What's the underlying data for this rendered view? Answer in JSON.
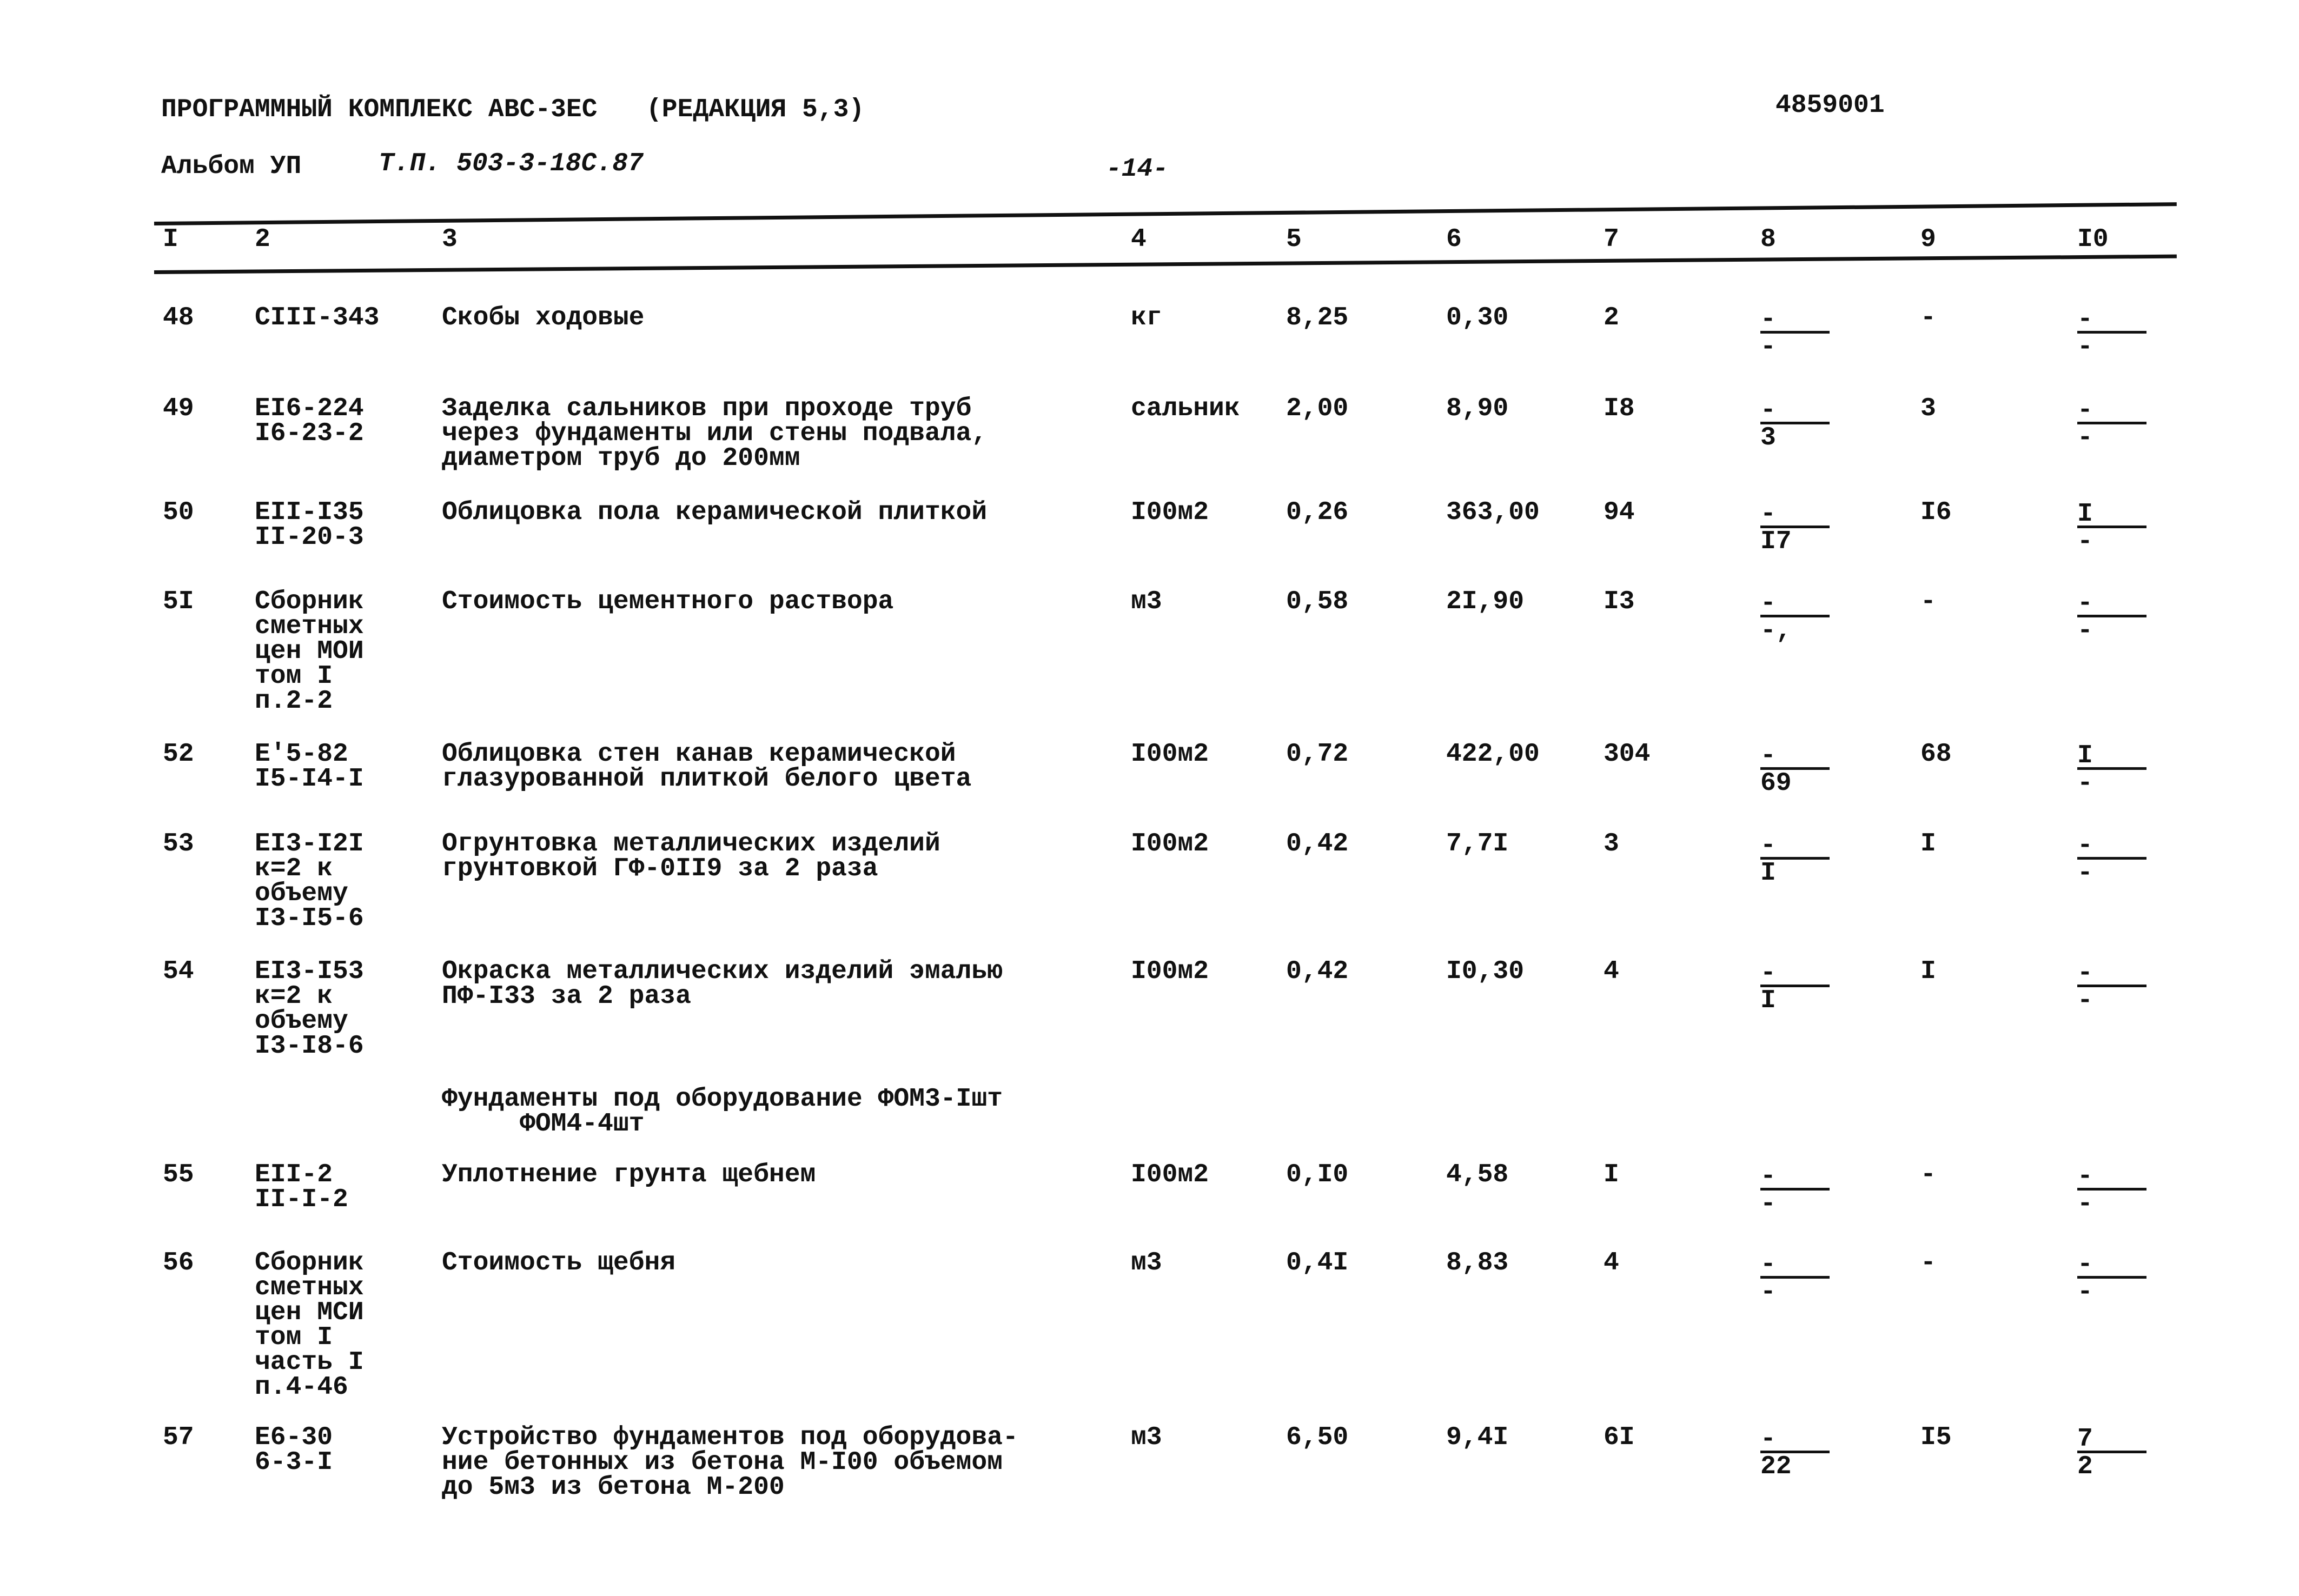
{
  "header": {
    "program": "ПРОГРАММНЫЙ КОМПЛЕКС АВС-3ЕС",
    "edition": "(РЕДАКЦИЯ 5,3)",
    "doc_number": "4859001",
    "album": "Альбом УП",
    "project": "Т.П. 503-3-18С.87",
    "page": "-14-"
  },
  "columns": [
    "I",
    "2",
    "3",
    "4",
    "5",
    "6",
    "7",
    "8",
    "9",
    "I0"
  ],
  "rows": [
    {
      "n": "48",
      "code": "СIII-343",
      "name": "Скобы ходовые",
      "unit": "кг",
      "c5": "8,25",
      "c6": "0,30",
      "c7": "2",
      "c8": {
        "num": "-",
        "den": "-"
      },
      "c9": "-",
      "c10": {
        "num": "-",
        "den": "-"
      }
    },
    {
      "n": "49",
      "code": "ЕI6-224\nI6-23-2",
      "name": "Заделка сальников при проходе труб\nчерез фундаменты или стены подвала,\nдиаметром труб до 200мм",
      "unit": "сальник",
      "c5": "2,00",
      "c6": "8,90",
      "c7": "I8",
      "c8": {
        "num": "-",
        "den": "3"
      },
      "c9": "3",
      "c10": {
        "num": "-",
        "den": "-"
      }
    },
    {
      "n": "50",
      "code": "ЕII-I35\nII-20-3",
      "name": "Облицовка пола керамической плиткой",
      "unit": "I00м2",
      "c5": "0,26",
      "c6": "363,00",
      "c7": "94",
      "c8": {
        "num": "-",
        "den": "I7"
      },
      "c9": "I6",
      "c10": {
        "num": "I",
        "den": "-"
      }
    },
    {
      "n": "5I",
      "code": "Сборник\nсметных\nцен МОИ\nтом I\nп.2-2",
      "name": "Стоимость цементного раствора",
      "unit": "м3",
      "c5": "0,58",
      "c6": "2I,90",
      "c7": "I3",
      "c8": {
        "num": "-",
        "den": "-,"
      },
      "c9": "-",
      "c10": {
        "num": "-",
        "den": "-"
      }
    },
    {
      "n": "52",
      "code": "Е'5-82\nI5-I4-I",
      "name": "Облицовка стен канав керамической\nглазурованной плиткой белого цвета",
      "unit": "I00м2",
      "c5": "0,72",
      "c6": "422,00",
      "c7": "304",
      "c8": {
        "num": "-",
        "den": "69"
      },
      "c9": "68",
      "c10": {
        "num": "I",
        "den": "-"
      }
    },
    {
      "n": "53",
      "code": "ЕI3-I2I\nк=2 к\nобъему\nI3-I5-6",
      "name": "Огрунтовка металлических изделий\nгрунтовкой ГФ-0II9 за 2 раза",
      "unit": "I00м2",
      "c5": "0,42",
      "c6": "7,7I",
      "c7": "3",
      "c8": {
        "num": "-",
        "den": "I"
      },
      "c9": "I",
      "c10": {
        "num": "-",
        "den": "-"
      }
    },
    {
      "n": "54",
      "code": "ЕI3-I53\nк=2 к\nобъему\nI3-I8-6",
      "name": "Окраска металлических изделий эмалью\nПФ-I33 за 2 раза",
      "unit": "I00м2",
      "c5": "0,42",
      "c6": "I0,30",
      "c7": "4",
      "c8": {
        "num": "-",
        "den": "I"
      },
      "c9": "I",
      "c10": {
        "num": "-",
        "den": "-"
      }
    },
    {
      "section": "Фундаменты под оборудование ФОМ3-Iшт\n     ФОМ4-4шт"
    },
    {
      "n": "55",
      "code": "ЕII-2\nII-I-2",
      "name": "Уплотнение грунта щебнем",
      "unit": "I00м2",
      "c5": "0,I0",
      "c6": "4,58",
      "c7": "I",
      "c8": {
        "num": "-",
        "den": "-"
      },
      "c9": "-",
      "c10": {
        "num": "-",
        "den": "-"
      }
    },
    {
      "n": "56",
      "code": "Сборник\nсметных\nцен МСИ\nтом I\nчасть I\nп.4-46",
      "name": "Стоимость щебня",
      "unit": "м3",
      "c5": "0,4I",
      "c6": "8,83",
      "c7": "4",
      "c8": {
        "num": "-",
        "den": "-"
      },
      "c9": "-",
      "c10": {
        "num": "-",
        "den": "-"
      }
    },
    {
      "n": "57",
      "code": "Е6-30\n6-3-I",
      "name": "Устройство фундаментов под оборудова-\nние бетонных из бетона М-I00 объемом\nдо 5м3 из бетона М-200",
      "unit": "м3",
      "c5": "6,50",
      "c6": "9,4I",
      "c7": "6I",
      "c8": {
        "num": "-",
        "den": "22"
      },
      "c9": "I5",
      "c10": {
        "num": "7",
        "den": "2"
      }
    }
  ]
}
